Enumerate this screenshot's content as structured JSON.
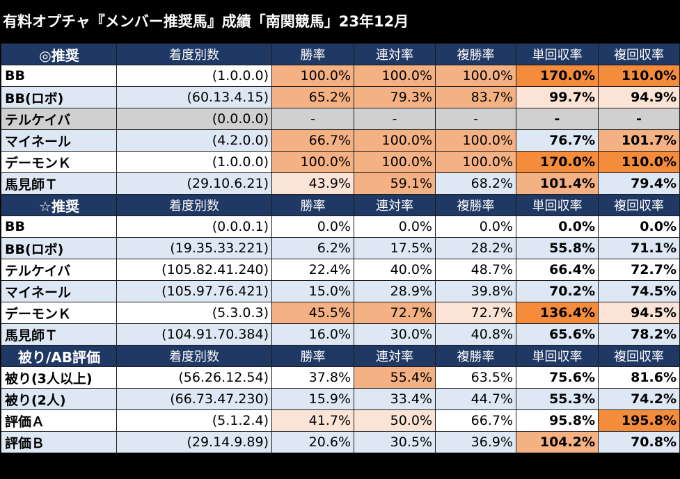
{
  "title": "有料オプチャ『メンバー推奨馬』成績「南関競馬」23年12月",
  "colors": {
    "header_bg": "#203864",
    "row_white": "#ffffff",
    "row_blue": "#dde8f4",
    "row_gray": "#d0d0d0",
    "heat_dark": "#f48c3c",
    "heat_mid": "#f4b183",
    "heat_light": "#fbe4d6"
  },
  "columns": [
    "着度別数",
    "勝率",
    "連対率",
    "複勝率",
    "単回収率",
    "複回収率"
  ],
  "sections": [
    {
      "label": "◎推奨",
      "rows": [
        {
          "name": "BB",
          "record": "(1.0.0.0)",
          "values": [
            "100.0%",
            "100.0%",
            "100.0%",
            "170.0%",
            "110.0%"
          ],
          "heat": [
            "mid",
            "mid",
            "mid",
            "dark",
            "dark"
          ]
        },
        {
          "name": "BB(ロボ)",
          "record": "(60.13.4.15)",
          "values": [
            "65.2%",
            "79.3%",
            "83.7%",
            "99.7%",
            "94.9%"
          ],
          "heat": [
            "mid",
            "mid",
            "mid",
            "light",
            "light"
          ]
        },
        {
          "name": "テルケイバ",
          "record": "(0.0.0.0)",
          "values": [
            "-",
            "-",
            "-",
            "-",
            "-"
          ],
          "heat": [
            "gray",
            "gray",
            "gray",
            "gray",
            "gray"
          ]
        },
        {
          "name": "マイネール",
          "record": "(4.2.0.0)",
          "values": [
            "66.7%",
            "100.0%",
            "100.0%",
            "76.7%",
            "101.7%"
          ],
          "heat": [
            "mid",
            "mid",
            "mid",
            "none",
            "mid"
          ]
        },
        {
          "name": "デーモンＫ",
          "record": "(1.0.0.0)",
          "values": [
            "100.0%",
            "100.0%",
            "100.0%",
            "170.0%",
            "110.0%"
          ],
          "heat": [
            "mid",
            "mid",
            "mid",
            "dark",
            "dark"
          ]
        },
        {
          "name": "馬見師Ｔ",
          "record": "(29.10.6.21)",
          "values": [
            "43.9%",
            "59.1%",
            "68.2%",
            "101.4%",
            "79.4%"
          ],
          "heat": [
            "light",
            "mid",
            "none",
            "mid",
            "none"
          ]
        }
      ]
    },
    {
      "label": "☆推奨",
      "rows": [
        {
          "name": "BB",
          "record": "(0.0.0.1)",
          "values": [
            "0.0%",
            "0.0%",
            "0.0%",
            "0.0%",
            "0.0%"
          ],
          "heat": [
            "none",
            "none",
            "none",
            "none",
            "none"
          ]
        },
        {
          "name": "BB(ロボ)",
          "record": "(19.35.33.221)",
          "values": [
            "6.2%",
            "17.5%",
            "28.2%",
            "55.8%",
            "71.1%"
          ],
          "heat": [
            "none",
            "none",
            "none",
            "none",
            "none"
          ]
        },
        {
          "name": "テルケイバ",
          "record": "(105.82.41.240)",
          "values": [
            "22.4%",
            "40.0%",
            "48.7%",
            "66.4%",
            "72.7%"
          ],
          "heat": [
            "none",
            "none",
            "none",
            "none",
            "none"
          ]
        },
        {
          "name": "マイネール",
          "record": "(105.97.76.421)",
          "values": [
            "15.0%",
            "28.9%",
            "39.8%",
            "70.2%",
            "74.5%"
          ],
          "heat": [
            "none",
            "none",
            "none",
            "none",
            "none"
          ]
        },
        {
          "name": "デーモンＫ",
          "record": "(5.3.0.3)",
          "values": [
            "45.5%",
            "72.7%",
            "72.7%",
            "136.4%",
            "94.5%"
          ],
          "heat": [
            "mid",
            "mid",
            "light",
            "dark",
            "light"
          ]
        },
        {
          "name": "馬見師Ｔ",
          "record": "(104.91.70.384)",
          "values": [
            "16.0%",
            "30.0%",
            "40.8%",
            "65.6%",
            "78.2%"
          ],
          "heat": [
            "none",
            "none",
            "none",
            "none",
            "none"
          ]
        }
      ]
    },
    {
      "label": "被り/AB評価",
      "rows": [
        {
          "name": "被り(3人以上)",
          "record": "(56.26.12.54)",
          "values": [
            "37.8%",
            "55.4%",
            "63.5%",
            "75.6%",
            "81.6%"
          ],
          "heat": [
            "none",
            "mid",
            "none",
            "none",
            "none"
          ]
        },
        {
          "name": "被り(2人)",
          "record": "(66.73.47.230)",
          "values": [
            "15.9%",
            "33.4%",
            "44.7%",
            "55.3%",
            "74.2%"
          ],
          "heat": [
            "none",
            "none",
            "none",
            "none",
            "none"
          ]
        },
        {
          "name": "評価Ａ",
          "record": "(5.1.2.4)",
          "values": [
            "41.7%",
            "50.0%",
            "66.7%",
            "95.8%",
            "195.8%"
          ],
          "heat": [
            "light",
            "light",
            "none",
            "none",
            "dark"
          ]
        },
        {
          "name": "評価Ｂ",
          "record": "(29.14.9.89)",
          "values": [
            "20.6%",
            "30.5%",
            "36.9%",
            "104.2%",
            "70.8%"
          ],
          "heat": [
            "none",
            "none",
            "none",
            "mid",
            "none"
          ]
        }
      ]
    }
  ]
}
